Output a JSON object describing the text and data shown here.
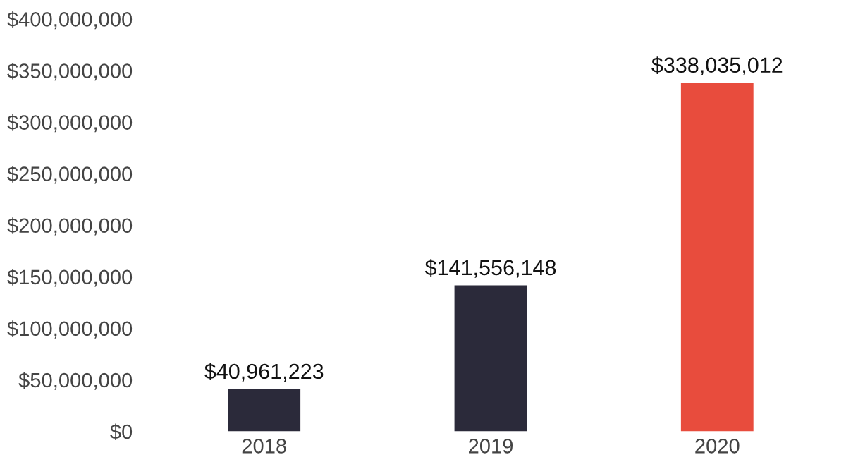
{
  "chart_data": {
    "type": "bar",
    "categories": [
      "2018",
      "2019",
      "2020"
    ],
    "values": [
      40961223,
      141556148,
      338035012
    ],
    "colors": [
      "#2b2a3a",
      "#2b2a3a",
      "#e84c3d"
    ],
    "value_labels": [
      "$40,961,223",
      "$141,556,148",
      "$338,035,012"
    ],
    "ylim": [
      0,
      400000000
    ],
    "yticks": [
      {
        "value": 0,
        "label": "$0"
      },
      {
        "value": 50000000,
        "label": "$50,000,000"
      },
      {
        "value": 100000000,
        "label": "$100,000,000"
      },
      {
        "value": 150000000,
        "label": "$150,000,000"
      },
      {
        "value": 200000000,
        "label": "$200,000,000"
      },
      {
        "value": 250000000,
        "label": "$250,000,000"
      },
      {
        "value": 300000000,
        "label": "$300,000,000"
      },
      {
        "value": 350000000,
        "label": "$350,000,000"
      },
      {
        "value": 400000000,
        "label": "$400,000,000"
      }
    ],
    "grid": false,
    "legend": false
  }
}
